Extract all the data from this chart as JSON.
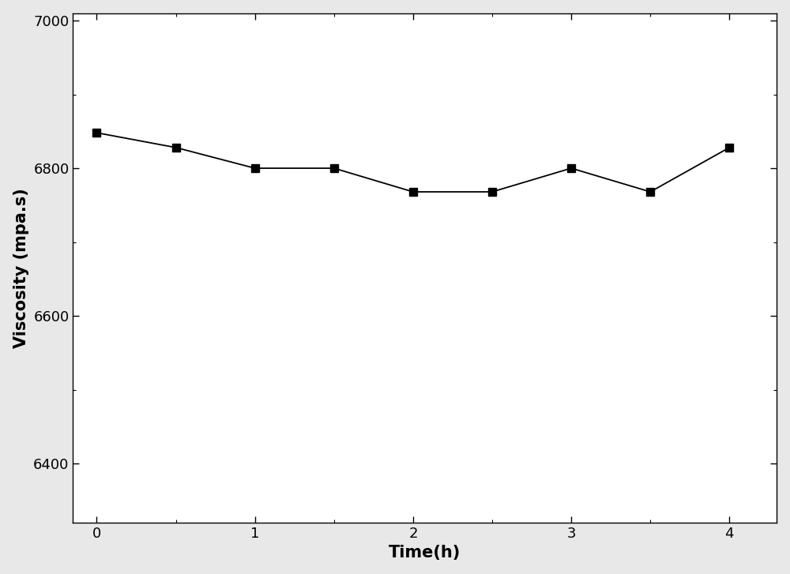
{
  "x": [
    0,
    0.5,
    1,
    1.5,
    2,
    2.5,
    3,
    3.5,
    4
  ],
  "y": [
    6848,
    6828,
    6800,
    6800,
    6768,
    6768,
    6800,
    6768,
    6828
  ],
  "xlabel": "Time(h)",
  "ylabel": "Viscosity (mpa.s)",
  "xlim": [
    -0.15,
    4.3
  ],
  "ylim": [
    6320,
    7010
  ],
  "yticks": [
    6400,
    6600,
    6800,
    7000
  ],
  "xticks": [
    0,
    1,
    2,
    3,
    4
  ],
  "line_color": "#000000",
  "marker": "s",
  "marker_color": "#000000",
  "marker_size": 7,
  "linewidth": 1.3,
  "figure_facecolor": "#e8e8e8",
  "axes_facecolor": "#ffffff",
  "xlabel_fontsize": 15,
  "ylabel_fontsize": 15,
  "tick_fontsize": 13,
  "figure_width": 10.0,
  "figure_height": 7.27
}
